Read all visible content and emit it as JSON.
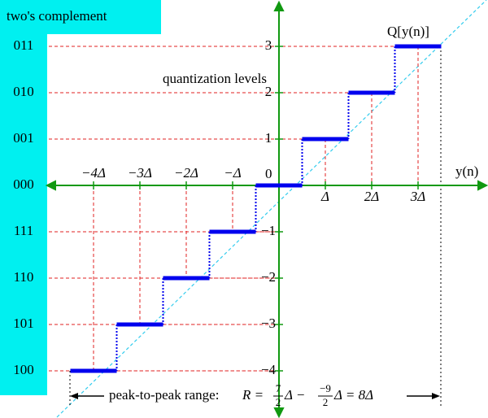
{
  "title": "two's complement",
  "codes": [
    "011",
    "010",
    "001",
    "000",
    "111",
    "110",
    "101",
    "100"
  ],
  "levels_label": "quantization levels",
  "output_label": "Q[y(n)]",
  "input_label": "y(n)",
  "origin_label": "0",
  "y_tick_labels": [
    "3",
    "2",
    "1",
    "−1",
    "−2",
    "−3",
    "−4"
  ],
  "x_tick_labels_negative": [
    "−4Δ",
    "−3Δ",
    "−2Δ",
    "−Δ"
  ],
  "x_tick_labels_positive": [
    "Δ",
    "2Δ",
    "3Δ"
  ],
  "range_annotation": {
    "label": "peak-to-peak range:",
    "r": "R =",
    "num1": "7",
    "den1": "2",
    "mid": "Δ −",
    "num2": "−9",
    "den2": "2",
    "end": "Δ = 8Δ"
  }
}
